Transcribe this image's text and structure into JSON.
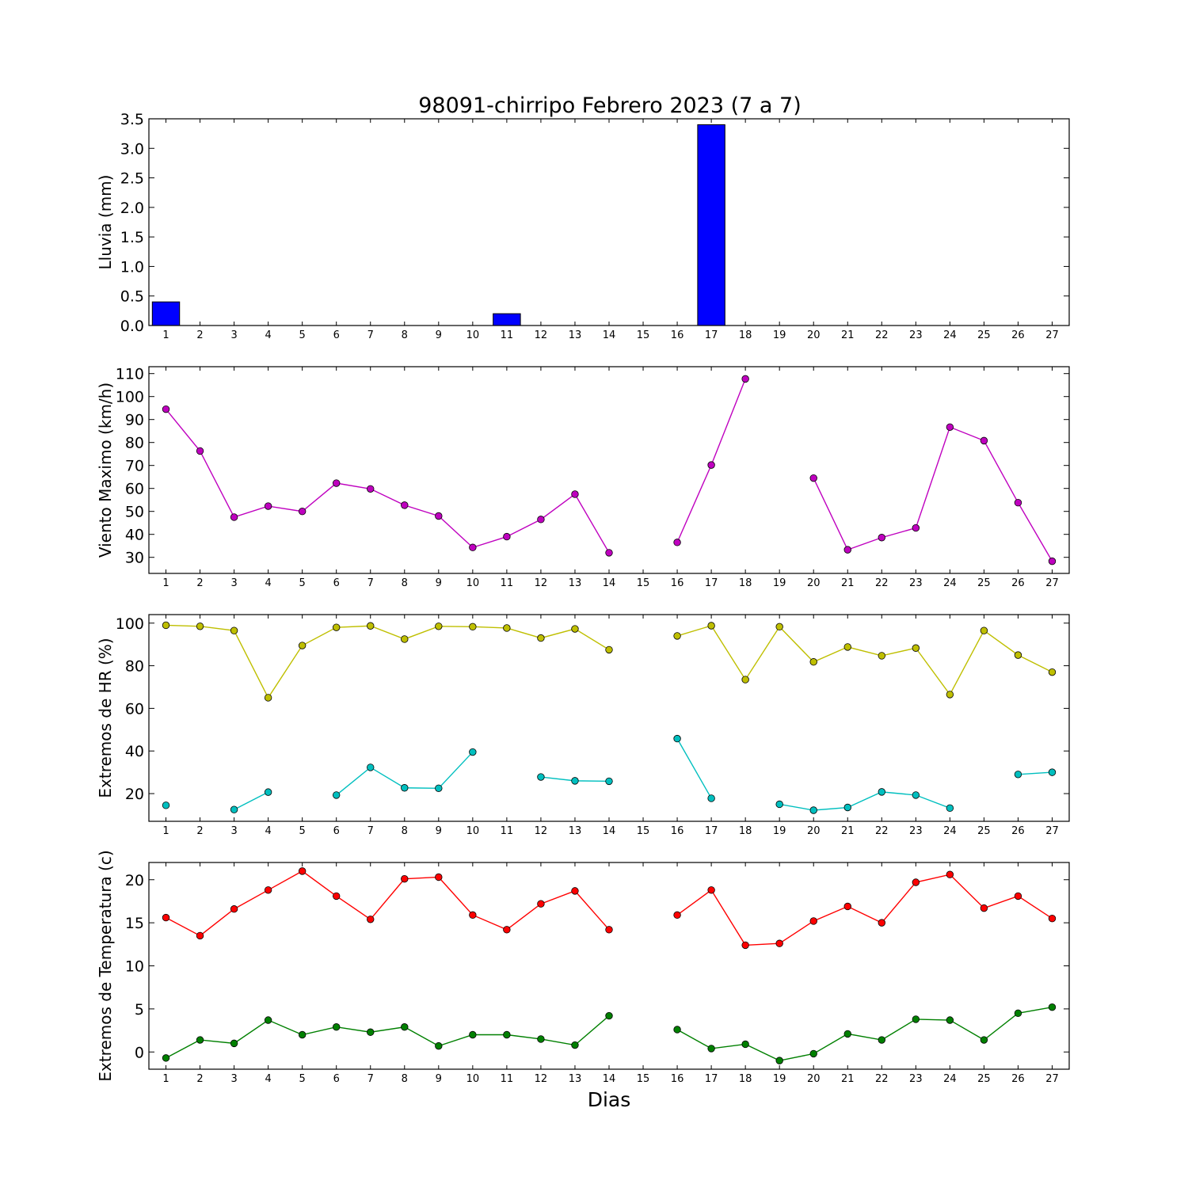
{
  "title": "98091-chirripo Febrero 2023  (7 a 7)",
  "xlabel": "Dias",
  "chart_data": [
    {
      "type": "bar",
      "ylabel": "Lluvia (mm)",
      "ylim": [
        0,
        3.5
      ],
      "yticks": [
        0.0,
        0.5,
        1.0,
        1.5,
        2.0,
        2.5,
        3.0,
        3.5
      ],
      "ytick_labels": [
        "0.0",
        "0.5",
        "1.0",
        "1.5",
        "2.0",
        "2.5",
        "3.0",
        "3.5"
      ],
      "x": [
        1,
        2,
        3,
        4,
        5,
        6,
        7,
        8,
        9,
        10,
        11,
        12,
        13,
        14,
        15,
        16,
        17,
        18,
        19,
        20,
        21,
        22,
        23,
        24,
        25,
        26,
        27
      ],
      "series": [
        {
          "color": "#0000ff",
          "values": [
            0.4,
            0,
            0,
            0,
            0,
            0,
            0,
            0,
            0,
            0,
            0.2,
            0,
            0,
            0,
            0,
            0,
            3.4,
            0,
            0,
            0,
            0,
            0,
            0,
            0,
            0,
            0,
            0
          ]
        }
      ]
    },
    {
      "type": "line",
      "ylabel": "Viento Maximo (km/h)",
      "ylim": [
        23,
        113
      ],
      "yticks": [
        30,
        40,
        50,
        60,
        70,
        80,
        90,
        100,
        110
      ],
      "ytick_labels": [
        "30",
        "40",
        "50",
        "60",
        "70",
        "80",
        "90",
        "100",
        "110"
      ],
      "x": [
        1,
        2,
        3,
        4,
        5,
        6,
        7,
        8,
        9,
        10,
        11,
        12,
        13,
        14,
        15,
        16,
        17,
        18,
        19,
        20,
        21,
        22,
        23,
        24,
        25,
        26,
        27
      ],
      "series": [
        {
          "color": "#bf00bf",
          "values": [
            94.5,
            76.3,
            47.5,
            52.3,
            50,
            62.3,
            59.8,
            52.7,
            48,
            34.3,
            39,
            46.5,
            57.5,
            32,
            null,
            36.5,
            70.2,
            107.7,
            null,
            64.5,
            33.3,
            38.6,
            42.8,
            86.7,
            80.8,
            53.8,
            28.3
          ]
        }
      ]
    },
    {
      "type": "line",
      "ylabel": "Extremos de HR (%)",
      "ylim": [
        7,
        104
      ],
      "yticks": [
        20,
        40,
        60,
        80,
        100
      ],
      "ytick_labels": [
        "20",
        "40",
        "60",
        "80",
        "100"
      ],
      "x": [
        1,
        2,
        3,
        4,
        5,
        6,
        7,
        8,
        9,
        10,
        11,
        12,
        13,
        14,
        15,
        16,
        17,
        18,
        19,
        20,
        21,
        22,
        23,
        24,
        25,
        26,
        27
      ],
      "series": [
        {
          "color": "#bfbf00",
          "values": [
            99,
            98.5,
            96.5,
            65,
            89.5,
            98,
            98.7,
            92.5,
            98.5,
            98.3,
            97.7,
            93,
            97.3,
            87.5,
            null,
            94,
            98.8,
            73.5,
            98.3,
            81.8,
            88.8,
            84.7,
            88.3,
            66.5,
            96.5,
            85,
            77
          ]
        },
        {
          "color": "#00bfbf",
          "values": [
            14.5,
            null,
            12.5,
            20.7,
            null,
            19.3,
            32.3,
            22.7,
            22.5,
            39.5,
            null,
            27.8,
            26,
            25.8,
            null,
            45.8,
            17.8,
            null,
            15,
            12.2,
            13.5,
            20.8,
            19.3,
            13.2,
            null,
            29,
            30
          ]
        }
      ]
    },
    {
      "type": "line",
      "ylabel": "Extremos de Temperatura (c)",
      "ylim": [
        -2,
        22
      ],
      "yticks": [
        0,
        5,
        10,
        15,
        20
      ],
      "ytick_labels": [
        "0",
        "5",
        "10",
        "15",
        "20"
      ],
      "x": [
        1,
        2,
        3,
        4,
        5,
        6,
        7,
        8,
        9,
        10,
        11,
        12,
        13,
        14,
        15,
        16,
        17,
        18,
        19,
        20,
        21,
        22,
        23,
        24,
        25,
        26,
        27
      ],
      "series": [
        {
          "color": "#ff0000",
          "values": [
            15.6,
            13.5,
            16.6,
            18.8,
            21,
            18.1,
            15.4,
            20.1,
            20.3,
            15.9,
            14.2,
            17.2,
            18.7,
            14.2,
            null,
            15.9,
            18.8,
            12.4,
            12.6,
            15.2,
            16.9,
            15,
            19.7,
            20.6,
            16.7,
            18.1,
            15.5
          ]
        },
        {
          "color": "#008000",
          "values": [
            -0.7,
            1.4,
            1,
            3.7,
            2,
            2.9,
            2.3,
            2.9,
            0.7,
            2,
            2,
            1.5,
            0.8,
            4.2,
            null,
            2.6,
            0.4,
            0.9,
            -1,
            -0.2,
            2.1,
            1.4,
            3.8,
            3.7,
            1.4,
            4.5,
            5.2
          ]
        }
      ]
    }
  ]
}
